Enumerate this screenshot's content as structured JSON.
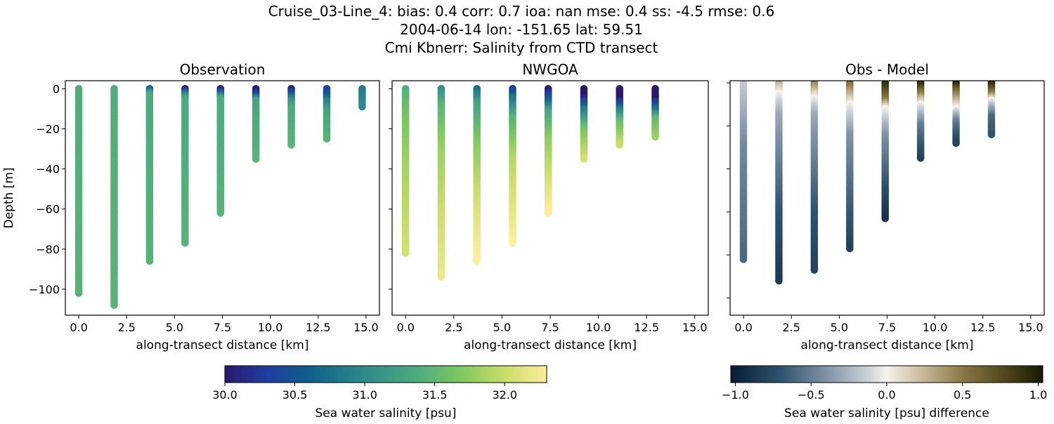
{
  "title_lines": [
    "Cruise_03-Line_4: bias: 0.4  corr: 0.7  ioa: nan  mse: 0.4  ss: -4.5  rmse: 0.6",
    "2004-06-14 lon: -151.65 lat: 59.51",
    "Cmi Kbnerr: Salinity from CTD transect"
  ],
  "chart_data": [
    {
      "type": "scatter",
      "title": "Observation",
      "xlabel": "along-transect distance [km]",
      "ylabel": "Depth [m]",
      "xlim": [
        -0.7,
        15.7
      ],
      "ylim": [
        -113,
        4
      ],
      "xticks": [
        "0.0",
        "2.5",
        "5.0",
        "7.5",
        "10.0",
        "12.5",
        "15.0"
      ],
      "yticks": [
        "0",
        "−20",
        "−40",
        "−60",
        "−80",
        "−100"
      ],
      "ytick_values": [
        0,
        -20,
        -40,
        -60,
        -80,
        -100
      ],
      "colormap": "haline",
      "profiles": [
        {
          "x": 0.0,
          "max_depth": 102,
          "values": [
            [
              0,
              31.4
            ],
            [
              102,
              31.45
            ]
          ]
        },
        {
          "x": 1.85,
          "max_depth": 108,
          "values": [
            [
              0,
              31.4
            ],
            [
              108,
              31.45
            ]
          ]
        },
        {
          "x": 3.7,
          "max_depth": 86,
          "values": [
            [
              0,
              30.6
            ],
            [
              3,
              31.35
            ],
            [
              86,
              31.45
            ]
          ]
        },
        {
          "x": 5.55,
          "max_depth": 77,
          "values": [
            [
              0,
              30.0
            ],
            [
              2,
              30.7
            ],
            [
              5,
              31.35
            ],
            [
              77,
              31.45
            ]
          ]
        },
        {
          "x": 7.4,
          "max_depth": 62,
          "values": [
            [
              0,
              30.0
            ],
            [
              2,
              30.6
            ],
            [
              5,
              31.35
            ],
            [
              62,
              31.45
            ]
          ]
        },
        {
          "x": 9.25,
          "max_depth": 35,
          "values": [
            [
              0,
              30.0
            ],
            [
              2,
              30.2
            ],
            [
              6,
              31.3
            ],
            [
              35,
              31.45
            ]
          ]
        },
        {
          "x": 11.1,
          "max_depth": 28,
          "values": [
            [
              0,
              30.0
            ],
            [
              2,
              30.4
            ],
            [
              6,
              31.1
            ],
            [
              10,
              31.35
            ],
            [
              28,
              31.45
            ]
          ]
        },
        {
          "x": 12.95,
          "max_depth": 25,
          "values": [
            [
              0,
              30.3
            ],
            [
              3,
              30.5
            ],
            [
              6,
              30.9
            ],
            [
              12,
              31.3
            ],
            [
              25,
              31.45
            ]
          ]
        },
        {
          "x": 14.8,
          "max_depth": 9,
          "values": [
            [
              0,
              30.85
            ],
            [
              9,
              31.0
            ]
          ]
        }
      ]
    },
    {
      "type": "scatter",
      "title": "NWGOA",
      "xlabel": "along-transect distance [km]",
      "xlim": [
        -0.7,
        15.7
      ],
      "ylim": [
        -113,
        4
      ],
      "xticks": [
        "0.0",
        "2.5",
        "5.0",
        "7.5",
        "10.0",
        "12.5",
        "15.0"
      ],
      "ytick_values": [
        0,
        -20,
        -40,
        -60,
        -80,
        -100
      ],
      "colormap": "haline",
      "profiles": [
        {
          "x": 0.0,
          "max_depth": 82,
          "values": [
            [
              0,
              31.4
            ],
            [
              15,
              31.65
            ],
            [
              40,
              31.85
            ],
            [
              82,
              32.05
            ]
          ]
        },
        {
          "x": 1.85,
          "max_depth": 94,
          "values": [
            [
              0,
              31.0
            ],
            [
              8,
              31.45
            ],
            [
              30,
              31.8
            ],
            [
              60,
              32.0
            ],
            [
              94,
              32.2
            ]
          ]
        },
        {
          "x": 3.7,
          "max_depth": 86,
          "values": [
            [
              0,
              30.7
            ],
            [
              8,
              31.3
            ],
            [
              30,
              31.75
            ],
            [
              60,
              32.1
            ],
            [
              86,
              32.3
            ]
          ]
        },
        {
          "x": 5.55,
          "max_depth": 77,
          "values": [
            [
              0,
              30.3
            ],
            [
              5,
              30.8
            ],
            [
              15,
              31.45
            ],
            [
              35,
              31.9
            ],
            [
              77,
              32.3
            ]
          ]
        },
        {
          "x": 7.4,
          "max_depth": 62,
          "values": [
            [
              0,
              30.0
            ],
            [
              4,
              30.4
            ],
            [
              12,
              31.3
            ],
            [
              25,
              31.75
            ],
            [
              62,
              32.3
            ]
          ]
        },
        {
          "x": 9.25,
          "max_depth": 35,
          "values": [
            [
              0,
              30.0
            ],
            [
              4,
              30.0
            ],
            [
              10,
              30.8
            ],
            [
              20,
              31.6
            ],
            [
              35,
              32.05
            ]
          ]
        },
        {
          "x": 11.1,
          "max_depth": 28,
          "values": [
            [
              0,
              30.0
            ],
            [
              5,
              30.0
            ],
            [
              10,
              30.8
            ],
            [
              16,
              31.5
            ],
            [
              28,
              32.0
            ]
          ]
        },
        {
          "x": 12.95,
          "max_depth": 24,
          "values": [
            [
              0,
              30.0
            ],
            [
              5,
              30.0
            ],
            [
              10,
              30.7
            ],
            [
              15,
              31.5
            ],
            [
              24,
              31.8
            ]
          ]
        }
      ]
    },
    {
      "type": "scatter",
      "title": "Obs - Model",
      "xlabel": "along-transect distance [km]",
      "xlim": [
        -0.7,
        15.7
      ],
      "ylim": [
        -108,
        1
      ],
      "xticks": [
        "0.0",
        "2.5",
        "5.0",
        "7.5",
        "10.0",
        "12.5",
        "15.0"
      ],
      "ytick_values": [
        0,
        -20,
        -40,
        -60,
        -80,
        -100
      ],
      "colormap": "diff",
      "profiles": [
        {
          "x": 0.0,
          "max_depth": 82,
          "values": [
            [
              0,
              -0.15
            ],
            [
              30,
              -0.45
            ],
            [
              82,
              -0.6
            ]
          ]
        },
        {
          "x": 1.85,
          "max_depth": 92,
          "values": [
            [
              0,
              0.3
            ],
            [
              5,
              0.0
            ],
            [
              15,
              -0.3
            ],
            [
              60,
              -0.7
            ],
            [
              92,
              -0.85
            ]
          ]
        },
        {
          "x": 3.7,
          "max_depth": 87,
          "values": [
            [
              0,
              0.5
            ],
            [
              7,
              0.0
            ],
            [
              15,
              -0.3
            ],
            [
              60,
              -0.7
            ],
            [
              87,
              -0.8
            ]
          ]
        },
        {
          "x": 5.55,
          "max_depth": 77,
          "values": [
            [
              0,
              0.6
            ],
            [
              10,
              0.0
            ],
            [
              25,
              -0.4
            ],
            [
              77,
              -0.8
            ]
          ]
        },
        {
          "x": 7.4,
          "max_depth": 63,
          "values": [
            [
              0,
              -0.9
            ],
            [
              1,
              0.9
            ],
            [
              8,
              0.5
            ],
            [
              12,
              0.0
            ],
            [
              25,
              -0.4
            ],
            [
              63,
              -0.9
            ]
          ]
        },
        {
          "x": 9.25,
          "max_depth": 35,
          "values": [
            [
              0,
              1.0
            ],
            [
              5,
              0.5
            ],
            [
              10,
              0.0
            ],
            [
              20,
              -0.5
            ],
            [
              35,
              -0.8
            ]
          ]
        },
        {
          "x": 11.1,
          "max_depth": 28,
          "values": [
            [
              0,
              1.0
            ],
            [
              5,
              0.5
            ],
            [
              12,
              0.0
            ],
            [
              18,
              -0.5
            ],
            [
              28,
              -0.8
            ]
          ]
        },
        {
          "x": 12.95,
          "max_depth": 24,
          "values": [
            [
              0,
              1.0
            ],
            [
              5,
              0.5
            ],
            [
              8,
              0.0
            ],
            [
              16,
              -0.6
            ],
            [
              24,
              -0.7
            ]
          ]
        }
      ]
    }
  ],
  "colorbars": [
    {
      "label": "Sea water salinity [psu]",
      "range": [
        30.0,
        32.3
      ],
      "ticks": [
        "30.0",
        "30.5",
        "31.0",
        "31.5",
        "32.0"
      ],
      "tick_values": [
        30.0,
        30.5,
        31.0,
        31.5,
        32.0
      ],
      "stops": [
        [
          30.0,
          "#2a186c"
        ],
        [
          30.3,
          "#1f3ea0"
        ],
        [
          30.6,
          "#0f5f8a"
        ],
        [
          31.0,
          "#2e8a8a"
        ],
        [
          31.4,
          "#4fae7c"
        ],
        [
          31.7,
          "#82c95e"
        ],
        [
          32.0,
          "#c9dd6a"
        ],
        [
          32.3,
          "#fdee99"
        ]
      ]
    },
    {
      "label": "Sea water salinity [psu] difference",
      "range": [
        -1.03,
        1.03
      ],
      "ticks": [
        "−1.0",
        "−0.5",
        "0.0",
        "0.5",
        "1.0"
      ],
      "tick_values": [
        -1.0,
        -0.5,
        0.0,
        0.5,
        1.0
      ],
      "stops": [
        [
          -1.03,
          "#081c35"
        ],
        [
          -0.7,
          "#2e5470"
        ],
        [
          -0.4,
          "#7f93a5"
        ],
        [
          -0.15,
          "#c3cbd3"
        ],
        [
          0.0,
          "#f5f2ec"
        ],
        [
          0.2,
          "#d0c2a4"
        ],
        [
          0.5,
          "#8a7845"
        ],
        [
          0.8,
          "#4c4218"
        ],
        [
          1.03,
          "#161a04"
        ]
      ]
    }
  ]
}
